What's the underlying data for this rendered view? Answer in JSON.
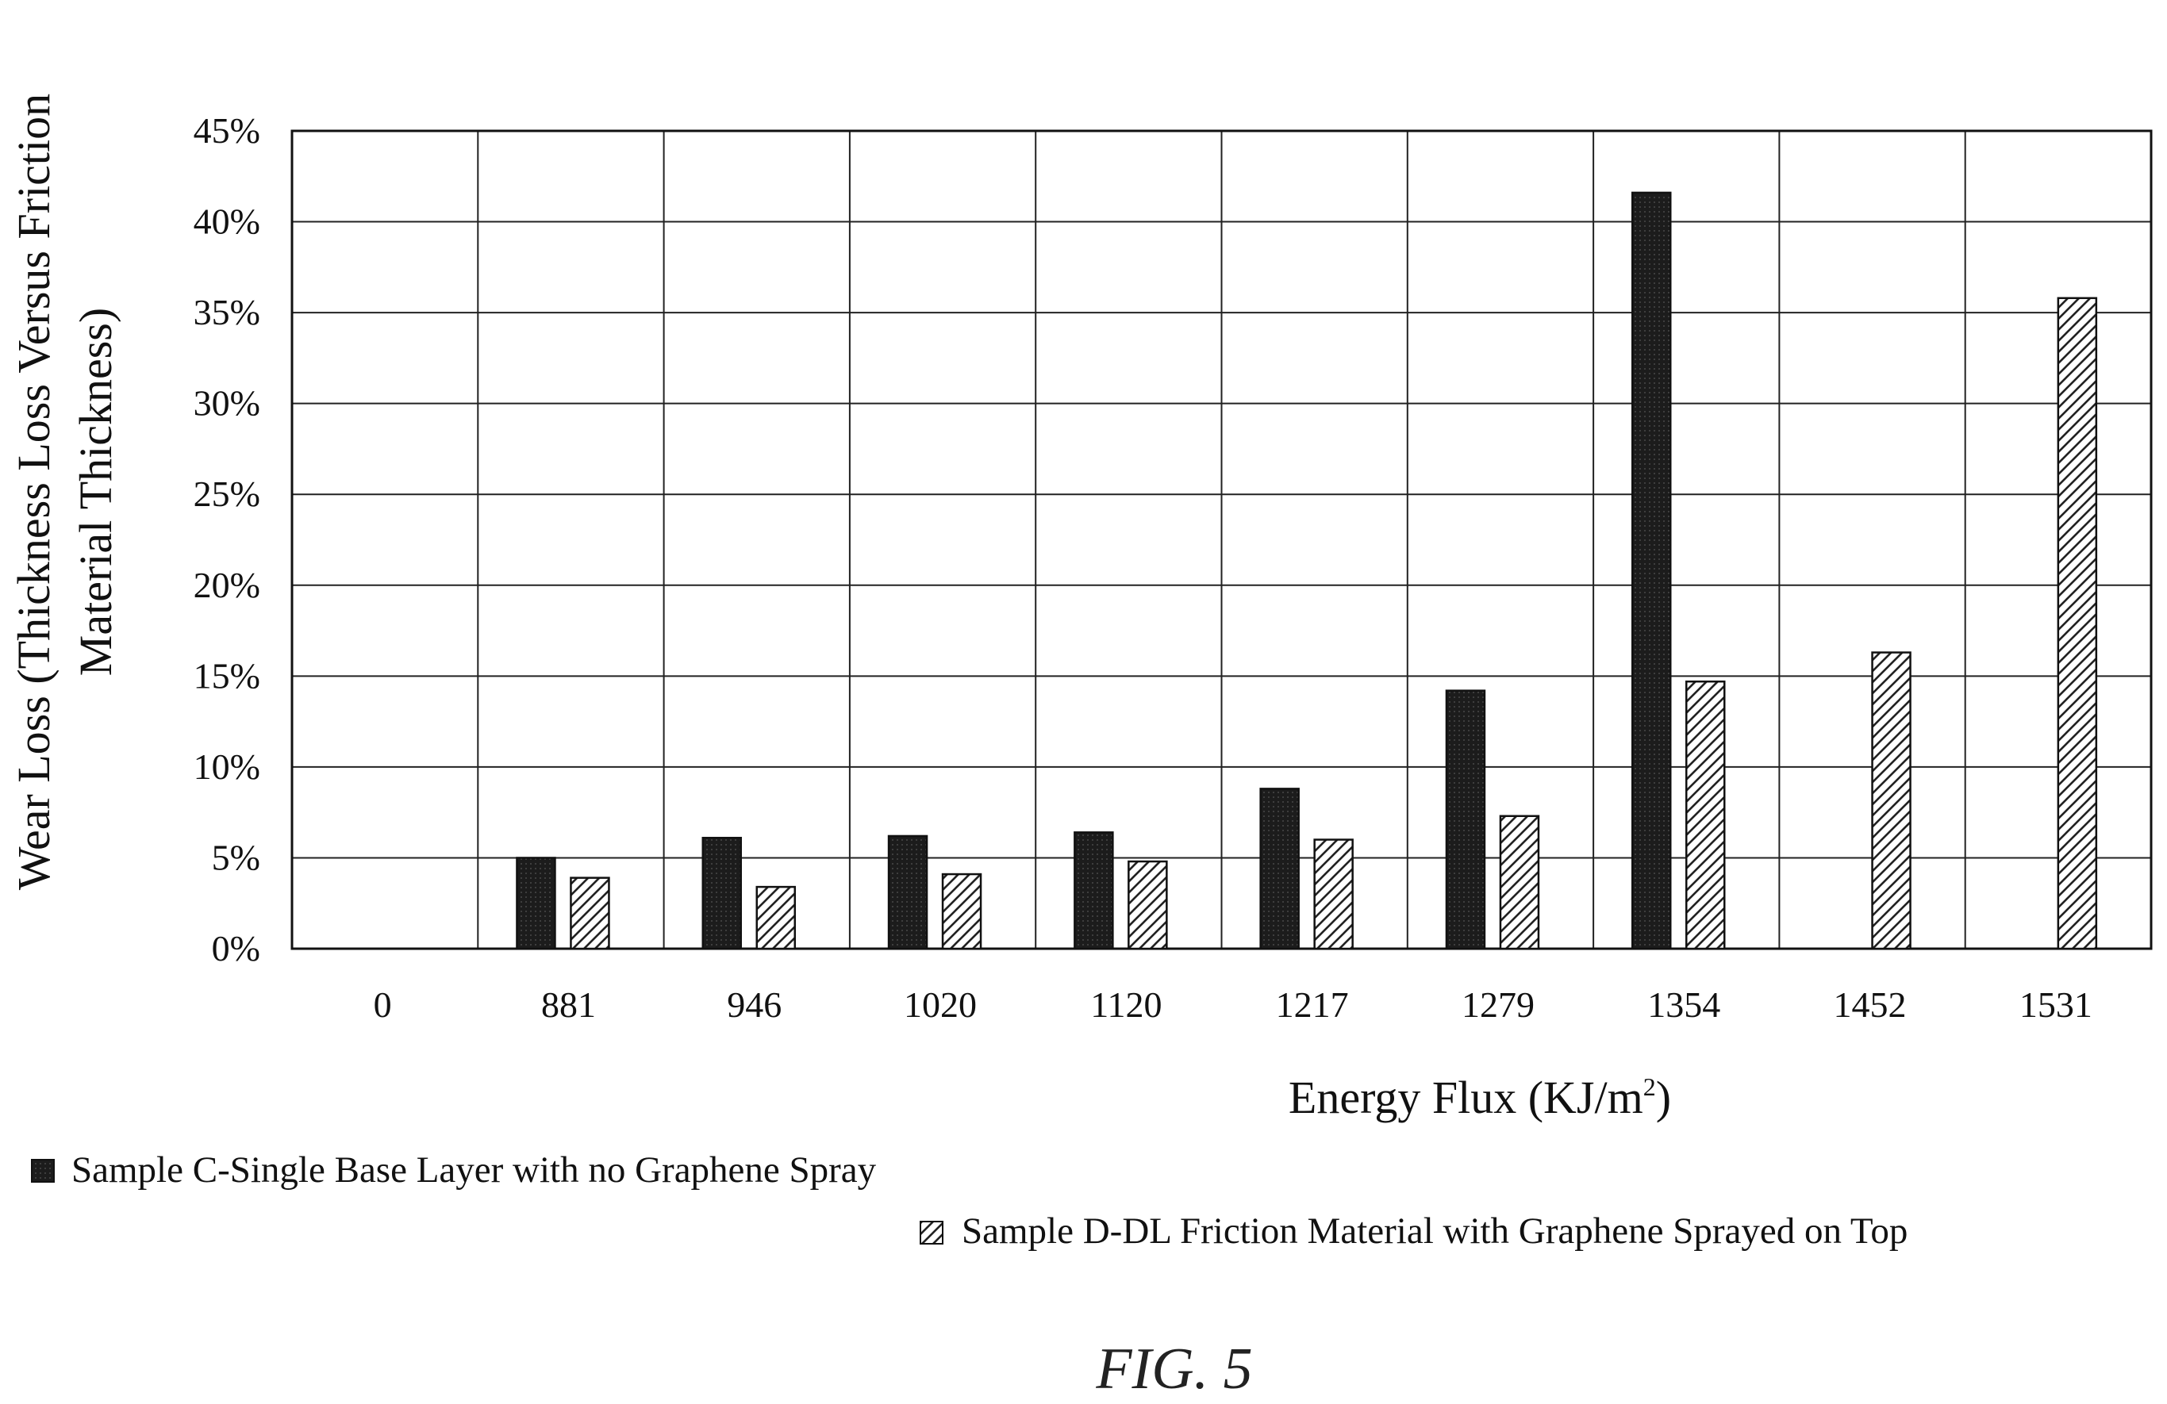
{
  "chart_data": {
    "type": "bar",
    "categories": [
      "0",
      "881",
      "946",
      "1020",
      "1120",
      "1217",
      "1279",
      "1354",
      "1452",
      "1531"
    ],
    "series": [
      {
        "name": "Sample C-Single Base Layer with no Graphene Spray",
        "values": [
          null,
          5.0,
          6.1,
          6.2,
          6.4,
          8.8,
          14.2,
          41.6,
          null,
          null
        ],
        "style": "solid-dark",
        "color": "#1a1a1a"
      },
      {
        "name": "Sample D-DL Friction Material with Graphene Sprayed on Top",
        "values": [
          null,
          3.9,
          3.4,
          4.1,
          4.8,
          6.0,
          7.3,
          14.7,
          16.3,
          35.8
        ],
        "style": "diagonal-hatch",
        "color": "#1a1a1a"
      }
    ],
    "ylim": [
      0,
      45
    ],
    "yticks": [
      "0%",
      "5%",
      "10%",
      "15%",
      "20%",
      "25%",
      "30%",
      "35%",
      "40%",
      "45%"
    ],
    "ylabel_line1": "Wear Loss (Thickness Loss Versus Friction",
    "ylabel_line2": "Material Thickness)",
    "xlabel": "Energy Flux (KJ/m",
    "xlabel_sup": "2",
    "xlabel_end": ")",
    "grid": true,
    "legend_placement": "bottom"
  },
  "figure_label": "FIG. 5"
}
